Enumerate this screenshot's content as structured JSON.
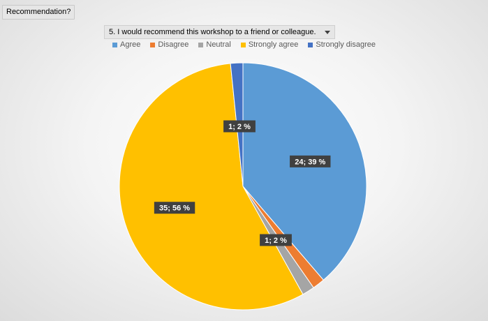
{
  "field_button": {
    "label": "Recommendation?"
  },
  "filter": {
    "label": "5. I would recommend this workshop to a friend or colleague."
  },
  "chart_data": {
    "type": "pie",
    "title": "",
    "categories": [
      "Agree",
      "Disagree",
      "Neutral",
      "Strongly agree",
      "Strongly disagree"
    ],
    "values": [
      24,
      1,
      1,
      35,
      1
    ],
    "percent_labels": [
      "39 %",
      "2 %",
      "2 %",
      "56 %",
      "2 %"
    ],
    "data_labels": [
      "24; 39 %",
      "1; 2 %",
      "",
      "35; 56 %",
      "1; 2 %"
    ],
    "colors": [
      "#5b9bd5",
      "#ed7d31",
      "#a5a5a5",
      "#ffc000",
      "#4472c4"
    ],
    "legend_position": "top",
    "start_angle_deg": 0,
    "direction": "clockwise"
  }
}
